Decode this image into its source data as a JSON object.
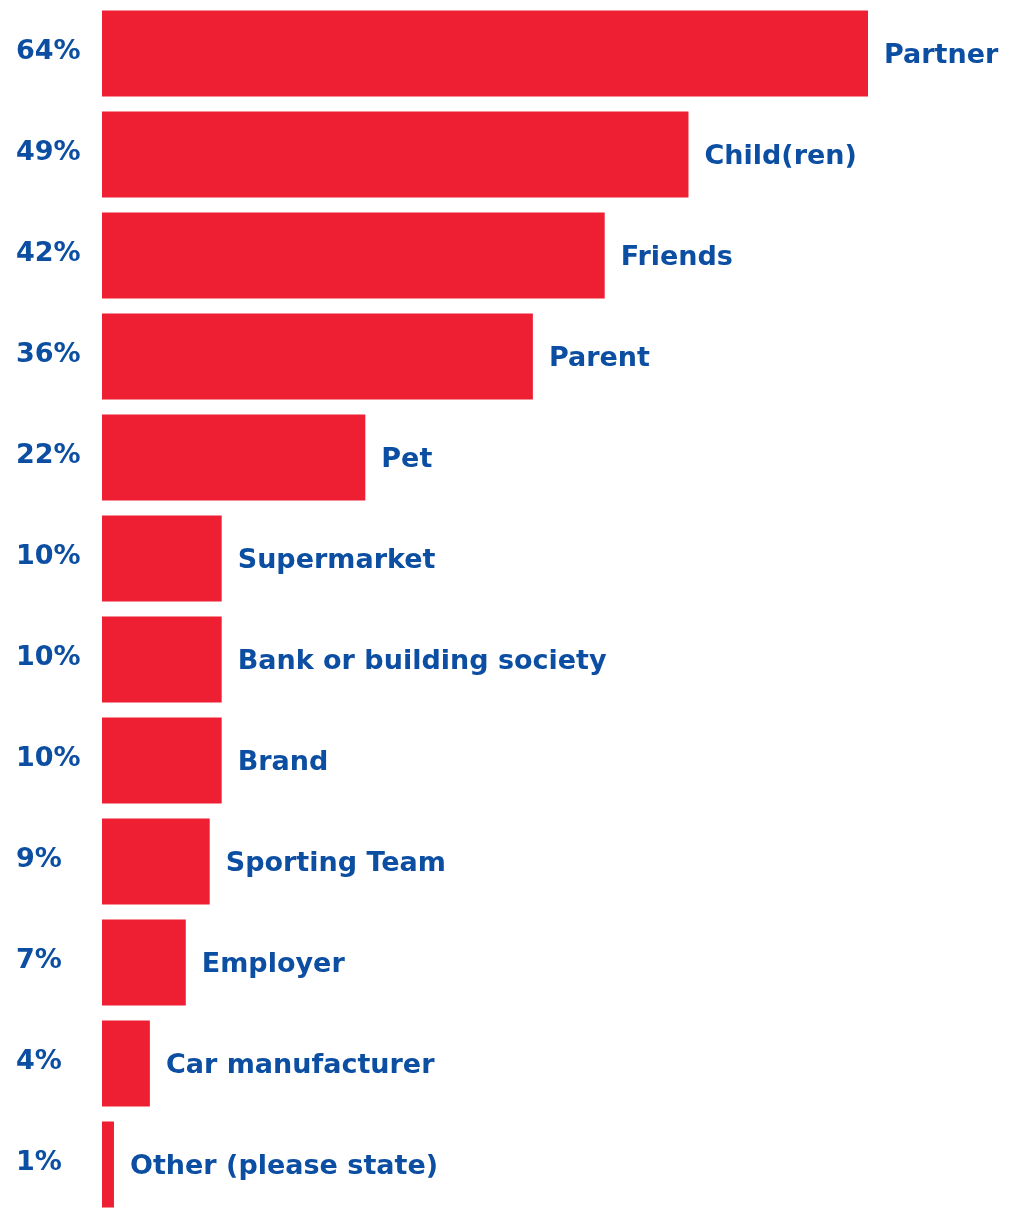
{
  "chart_data": {
    "type": "bar",
    "orientation": "horizontal",
    "categories": [
      "Partner",
      "Child(ren)",
      "Friends",
      "Parent",
      "Pet",
      "Supermarket",
      "Bank or building society",
      "Brand",
      "Sporting Team",
      "Employer",
      "Car manufacturer",
      "Other (please state)"
    ],
    "values": [
      64,
      49,
      42,
      36,
      22,
      10,
      10,
      10,
      9,
      7,
      4,
      1
    ],
    "value_labels": [
      "64%",
      "49%",
      "42%",
      "36%",
      "22%",
      "10%",
      "10%",
      "10%",
      "9%",
      "7%",
      "4%",
      "1%"
    ],
    "color": "#ee1f33"
  }
}
